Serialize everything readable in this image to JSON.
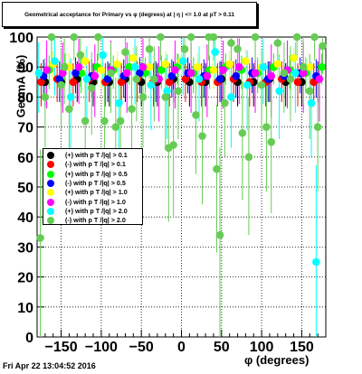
{
  "title": "Geometrical acceptance for Primary vs φ (degrees) at | η | <= 1.0 at pT > 0.11",
  "footer": "Fri Apr 22 13:04:52 2016",
  "chart_data": {
    "type": "scatter",
    "xlabel": "φ (degrees)",
    "ylabel": "GeomA (%)",
    "xlim": [
      -180,
      180
    ],
    "ylim": [
      0,
      100
    ],
    "x_ticks": [
      -150,
      -100,
      -50,
      0,
      50,
      100,
      150
    ],
    "y_ticks": [
      0,
      10,
      20,
      30,
      40,
      50,
      60,
      70,
      80,
      90,
      100
    ],
    "grid": true,
    "legend_position": "left-middle",
    "series": [
      {
        "name": "(+) with p T /|q| > 0.1",
        "color": "#000000",
        "x": [
          -170,
          -150,
          -130,
          -110,
          -90,
          -70,
          -50,
          -30,
          -10,
          10,
          30,
          50,
          70,
          90,
          110,
          130,
          150,
          170
        ],
        "y": [
          85,
          85,
          86,
          85,
          85,
          86,
          85,
          85,
          86,
          85,
          85,
          86,
          85,
          85,
          86,
          85,
          85,
          86
        ]
      },
      {
        "name": "(-) with p T /|q| > 0.1",
        "color": "#ff0000",
        "x": [
          -175,
          -155,
          -135,
          -115,
          -95,
          -75,
          -55,
          -35,
          -15,
          5,
          25,
          45,
          65,
          85,
          105,
          125,
          145,
          165
        ],
        "y": [
          85,
          86,
          85,
          86,
          85,
          85,
          86,
          85,
          85,
          86,
          85,
          85,
          86,
          85,
          85,
          86,
          85,
          85
        ]
      },
      {
        "name": "(+) with p T /|q| > 0.5",
        "color": "#00ff00",
        "x": [
          -165,
          -145,
          -125,
          -105,
          -85,
          -65,
          -45,
          -25,
          -5,
          15,
          35,
          55,
          75,
          95,
          115,
          135,
          155,
          175
        ],
        "y": [
          89,
          90,
          88,
          90,
          89,
          90,
          88,
          89,
          90,
          88,
          89,
          90,
          89,
          88,
          90,
          89,
          88,
          90
        ]
      },
      {
        "name": "(-) with p T /|q| > 0.5",
        "color": "#0000ff",
        "x": [
          -172,
          -152,
          -132,
          -112,
          -92,
          -72,
          -52,
          -32,
          -12,
          8,
          28,
          48,
          68,
          88,
          108,
          128,
          148,
          168
        ],
        "y": [
          87,
          86,
          88,
          87,
          86,
          87,
          88,
          86,
          87,
          88,
          87,
          86,
          87,
          88,
          86,
          87,
          88,
          87
        ]
      },
      {
        "name": "(+) with p T /|q| > 1.0",
        "color": "#ffff00",
        "x": [
          -160,
          -140,
          -120,
          -100,
          -80,
          -60,
          -40,
          -20,
          0,
          20,
          40,
          60,
          80,
          100,
          120,
          140,
          160
        ],
        "y": [
          91,
          90,
          92,
          89,
          91,
          93,
          90,
          91,
          92,
          90,
          89,
          91,
          92,
          90,
          91,
          93,
          90
        ]
      },
      {
        "name": "(-) with p T /|q| > 1.0",
        "color": "#ff00ff",
        "x": [
          -168,
          -148,
          -128,
          -108,
          -88,
          -68,
          -48,
          -28,
          -8,
          12,
          32,
          52,
          72,
          92,
          112,
          132,
          152,
          172
        ],
        "y": [
          89,
          88,
          90,
          87,
          89,
          88,
          90,
          86,
          89,
          88,
          87,
          89,
          90,
          88,
          87,
          89,
          88,
          86
        ]
      },
      {
        "name": "(+) with p T /|q| > 2.0",
        "color": "#00ffff",
        "x": [
          -178,
          -158,
          -138,
          -118,
          -98,
          -78,
          -58,
          -38,
          -18,
          2,
          22,
          42,
          62,
          82,
          102,
          122,
          142,
          162,
          168
        ],
        "y": [
          88,
          92,
          80,
          86,
          94,
          78,
          90,
          84,
          82,
          92,
          86,
          95,
          80,
          84,
          90,
          82,
          88,
          78,
          25
        ]
      },
      {
        "name": "(-) with p T /|q| > 2.0",
        "color": "#66cc55",
        "x": [
          -176,
          -170,
          -162,
          -150,
          -146,
          -140,
          -134,
          -126,
          -120,
          -112,
          -104,
          -96,
          -88,
          -82,
          -76,
          -70,
          -62,
          -56,
          -48,
          -40,
          -34,
          -26,
          -20,
          -16,
          -10,
          -4,
          4,
          12,
          18,
          26,
          34,
          40,
          44,
          48,
          54,
          62,
          70,
          76,
          84,
          92,
          100,
          106,
          112,
          120,
          128,
          136,
          144,
          152,
          160,
          166,
          170,
          176
        ],
        "y": [
          33,
          80,
          100,
          84,
          90,
          76,
          100,
          94,
          72,
          83,
          100,
          72,
          88,
          70,
          72,
          95,
          76,
          86,
          80,
          96,
          86,
          100,
          80,
          63,
          64,
          82,
          96,
          100,
          74,
          67,
          100,
          100,
          56,
          34,
          78,
          98,
          96,
          68,
          60,
          100,
          84,
          70,
          65,
          98,
          88,
          86,
          100,
          90,
          82,
          100,
          70,
          97
        ]
      }
    ]
  }
}
